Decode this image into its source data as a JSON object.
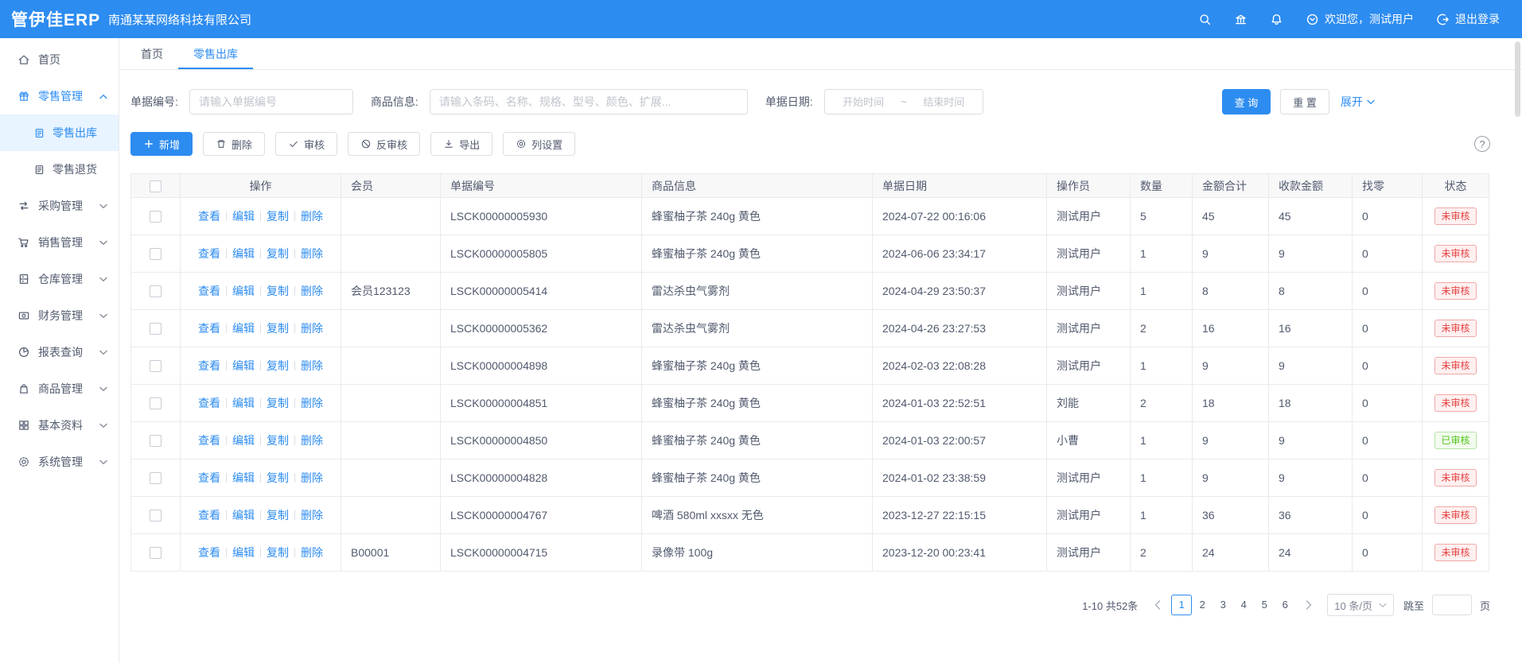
{
  "colors": {
    "primary": "#2d8cf0",
    "badge_red": "#e64242",
    "badge_green": "#52c41a"
  },
  "header": {
    "logo": "管伊佳ERP",
    "company": "南通某某网络科技有限公司",
    "welcome": "欢迎您，测试用户",
    "logout": "退出登录"
  },
  "sidebar": {
    "items": [
      {
        "label": "首页",
        "icon": "home-icon"
      },
      {
        "label": "零售管理",
        "icon": "retail-icon",
        "expanded": true,
        "children": [
          {
            "label": "零售出库",
            "icon": "document-icon",
            "active": true
          },
          {
            "label": "零售退货",
            "icon": "document-icon"
          }
        ]
      },
      {
        "label": "采购管理",
        "icon": "purchase-icon"
      },
      {
        "label": "销售管理",
        "icon": "sales-icon"
      },
      {
        "label": "仓库管理",
        "icon": "warehouse-icon"
      },
      {
        "label": "财务管理",
        "icon": "finance-icon"
      },
      {
        "label": "报表查询",
        "icon": "report-icon"
      },
      {
        "label": "商品管理",
        "icon": "goods-icon"
      },
      {
        "label": "基本资料",
        "icon": "basic-data-icon"
      },
      {
        "label": "系统管理",
        "icon": "system-icon"
      }
    ]
  },
  "tabs": [
    {
      "label": "首页"
    },
    {
      "label": "零售出库",
      "active": true
    }
  ],
  "filters": {
    "bill_no_label": "单据编号:",
    "bill_no_placeholder": "请输入单据编号",
    "product_label": "商品信息:",
    "product_placeholder": "请输入条码、名称、规格、型号、颜色、扩展...",
    "date_label": "单据日期:",
    "date_start_placeholder": "开始时间",
    "date_separator": "~",
    "date_end_placeholder": "结束时间",
    "search_label": "查 询",
    "reset_label": "重 置",
    "expand_label": "展开"
  },
  "toolbar": {
    "add_label": "新增",
    "delete_label": "删除",
    "audit_label": "审核",
    "unaudit_label": "反审核",
    "export_label": "导出",
    "column_settings_label": "列设置",
    "help_glyph": "?"
  },
  "table": {
    "headers": [
      "操作",
      "会员",
      "单据编号",
      "商品信息",
      "单据日期",
      "操作员",
      "数量",
      "金额合计",
      "收款金额",
      "找零",
      "状态"
    ],
    "action_labels": [
      "查看",
      "编辑",
      "复制",
      "删除"
    ],
    "rows": [
      {
        "member": "",
        "bill_no": "LSCK00000005930",
        "product": "蜂蜜柚子茶 240g 黄色",
        "date": "2024-07-22 00:16:06",
        "operator": "测试用户",
        "qty": "5",
        "amount": "45",
        "received": "45",
        "change": "0",
        "status": "未审核",
        "status_type": "red"
      },
      {
        "member": "",
        "bill_no": "LSCK00000005805",
        "product": "蜂蜜柚子茶 240g 黄色",
        "date": "2024-06-06 23:34:17",
        "operator": "测试用户",
        "qty": "1",
        "amount": "9",
        "received": "9",
        "change": "0",
        "status": "未审核",
        "status_type": "red"
      },
      {
        "member": "会员123123",
        "bill_no": "LSCK00000005414",
        "product": "雷达杀虫气雾剂",
        "date": "2024-04-29 23:50:37",
        "operator": "测试用户",
        "qty": "1",
        "amount": "8",
        "received": "8",
        "change": "0",
        "status": "未审核",
        "status_type": "red"
      },
      {
        "member": "",
        "bill_no": "LSCK00000005362",
        "product": "雷达杀虫气雾剂",
        "date": "2024-04-26 23:27:53",
        "operator": "测试用户",
        "qty": "2",
        "amount": "16",
        "received": "16",
        "change": "0",
        "status": "未审核",
        "status_type": "red"
      },
      {
        "member": "",
        "bill_no": "LSCK00000004898",
        "product": "蜂蜜柚子茶 240g 黄色",
        "date": "2024-02-03 22:08:28",
        "operator": "测试用户",
        "qty": "1",
        "amount": "9",
        "received": "9",
        "change": "0",
        "status": "未审核",
        "status_type": "red"
      },
      {
        "member": "",
        "bill_no": "LSCK00000004851",
        "product": "蜂蜜柚子茶 240g 黄色",
        "date": "2024-01-03 22:52:51",
        "operator": "刘能",
        "qty": "2",
        "amount": "18",
        "received": "18",
        "change": "0",
        "status": "未审核",
        "status_type": "red"
      },
      {
        "member": "",
        "bill_no": "LSCK00000004850",
        "product": "蜂蜜柚子茶 240g 黄色",
        "date": "2024-01-03 22:00:57",
        "operator": "小曹",
        "qty": "1",
        "amount": "9",
        "received": "9",
        "change": "0",
        "status": "已审核",
        "status_type": "green"
      },
      {
        "member": "",
        "bill_no": "LSCK00000004828",
        "product": "蜂蜜柚子茶 240g 黄色",
        "date": "2024-01-02 23:38:59",
        "operator": "测试用户",
        "qty": "1",
        "amount": "9",
        "received": "9",
        "change": "0",
        "status": "未审核",
        "status_type": "red"
      },
      {
        "member": "",
        "bill_no": "LSCK00000004767",
        "product": "啤酒 580ml xxsxx 无色",
        "date": "2023-12-27 22:15:15",
        "operator": "测试用户",
        "qty": "1",
        "amount": "36",
        "received": "36",
        "change": "0",
        "status": "未审核",
        "status_type": "red"
      },
      {
        "member": "B00001",
        "bill_no": "LSCK00000004715",
        "product": "录像带 100g",
        "date": "2023-12-20 00:23:41",
        "operator": "测试用户",
        "qty": "2",
        "amount": "24",
        "received": "24",
        "change": "0",
        "status": "未审核",
        "status_type": "red"
      }
    ]
  },
  "pagination": {
    "summary": "1-10 共52条",
    "pages": [
      "1",
      "2",
      "3",
      "4",
      "5",
      "6"
    ],
    "current_page": "1",
    "page_size": "10 条/页",
    "jump_label": "跳至",
    "jump_unit": "页"
  }
}
